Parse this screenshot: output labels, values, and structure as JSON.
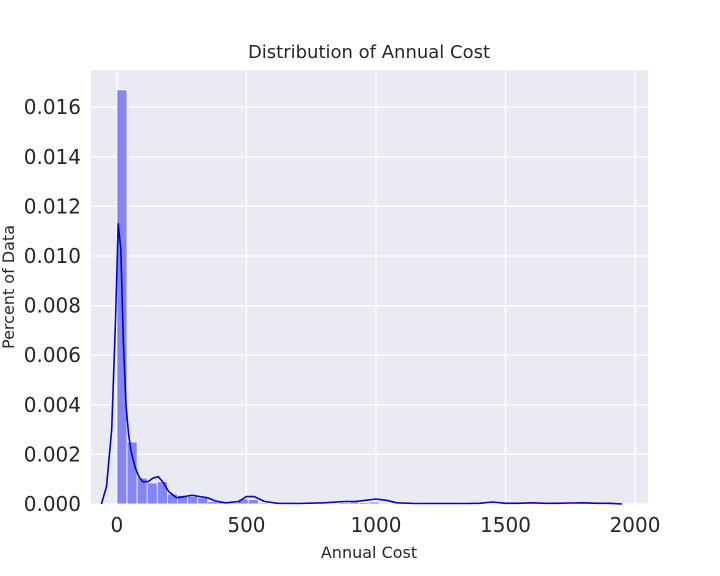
{
  "chart_data": {
    "type": "bar",
    "title": "Distribution of Annual Cost",
    "xlabel": "Annual Cost",
    "ylabel": "Percent of Data",
    "xlim": [
      -100,
      2050
    ],
    "ylim": [
      0,
      0.0175
    ],
    "xticks": [
      0,
      500,
      1000,
      1500,
      2000
    ],
    "yticks": [
      0,
      0.002,
      0.004,
      0.006,
      0.008,
      0.01,
      0.012,
      0.014,
      0.016
    ],
    "ytick_labels": [
      "0.000",
      "0.002",
      "0.004",
      "0.006",
      "0.008",
      "0.010",
      "0.012",
      "0.014",
      "0.016"
    ],
    "grid": true,
    "histogram": {
      "bin_start": 0,
      "bin_width": 39,
      "densities": [
        0.0167,
        0.0025,
        0.00105,
        0.00085,
        0.0009,
        0.0004,
        0.00035,
        0.0003,
        0.00025,
        0.0001,
        8e-05,
        5e-05,
        0.0002,
        0.00018,
        5e-05,
        3e-05,
        2e-05,
        2e-05,
        2e-05,
        2e-05,
        2e-05,
        2e-05,
        6e-05,
        8e-05,
        6e-05,
        8e-05,
        4e-05,
        2e-05,
        2e-05,
        2e-05,
        2e-05,
        2e-05,
        2e-05,
        2e-05,
        4e-05,
        4e-05,
        2e-05,
        2e-05,
        2e-05,
        2e-05,
        2e-05,
        2e-05,
        2e-05,
        4e-05,
        4e-05,
        2e-05,
        4e-05,
        4e-05,
        2e-05,
        2e-05
      ],
      "color": "#8585f5"
    },
    "kde": {
      "x": [
        -60,
        -40,
        -20,
        -5,
        5,
        15,
        25,
        35,
        45,
        55,
        70,
        85,
        100,
        120,
        140,
        160,
        180,
        200,
        230,
        260,
        290,
        320,
        350,
        380,
        420,
        470,
        500,
        530,
        570,
        620,
        700,
        800,
        880,
        920,
        960,
        1000,
        1040,
        1080,
        1150,
        1250,
        1350,
        1400,
        1450,
        1500,
        1550,
        1600,
        1650,
        1700,
        1750,
        1800,
        1850,
        1900,
        1950
      ],
      "y": [
        0.0,
        0.0007,
        0.003,
        0.0075,
        0.0113,
        0.0103,
        0.0065,
        0.004,
        0.0028,
        0.0021,
        0.0015,
        0.0011,
        0.0009,
        0.0009,
        0.00105,
        0.0011,
        0.00085,
        0.0005,
        0.00025,
        0.0003,
        0.00035,
        0.0003,
        0.00025,
        0.00012,
        5e-05,
        0.0001,
        0.0003,
        0.0003,
        0.0001,
        3e-05,
        2e-05,
        5e-05,
        0.0001,
        0.0001,
        0.00015,
        0.0002,
        0.00015,
        5e-05,
        2e-05,
        2e-05,
        2e-05,
        3e-05,
        8e-05,
        3e-05,
        3e-05,
        5e-05,
        3e-05,
        3e-05,
        4e-05,
        5e-05,
        3e-05,
        3e-05,
        0.0
      ],
      "color": "#0000dd"
    },
    "colors": {
      "plot_background": "#eaeaf2",
      "grid": "#ffffff"
    }
  }
}
